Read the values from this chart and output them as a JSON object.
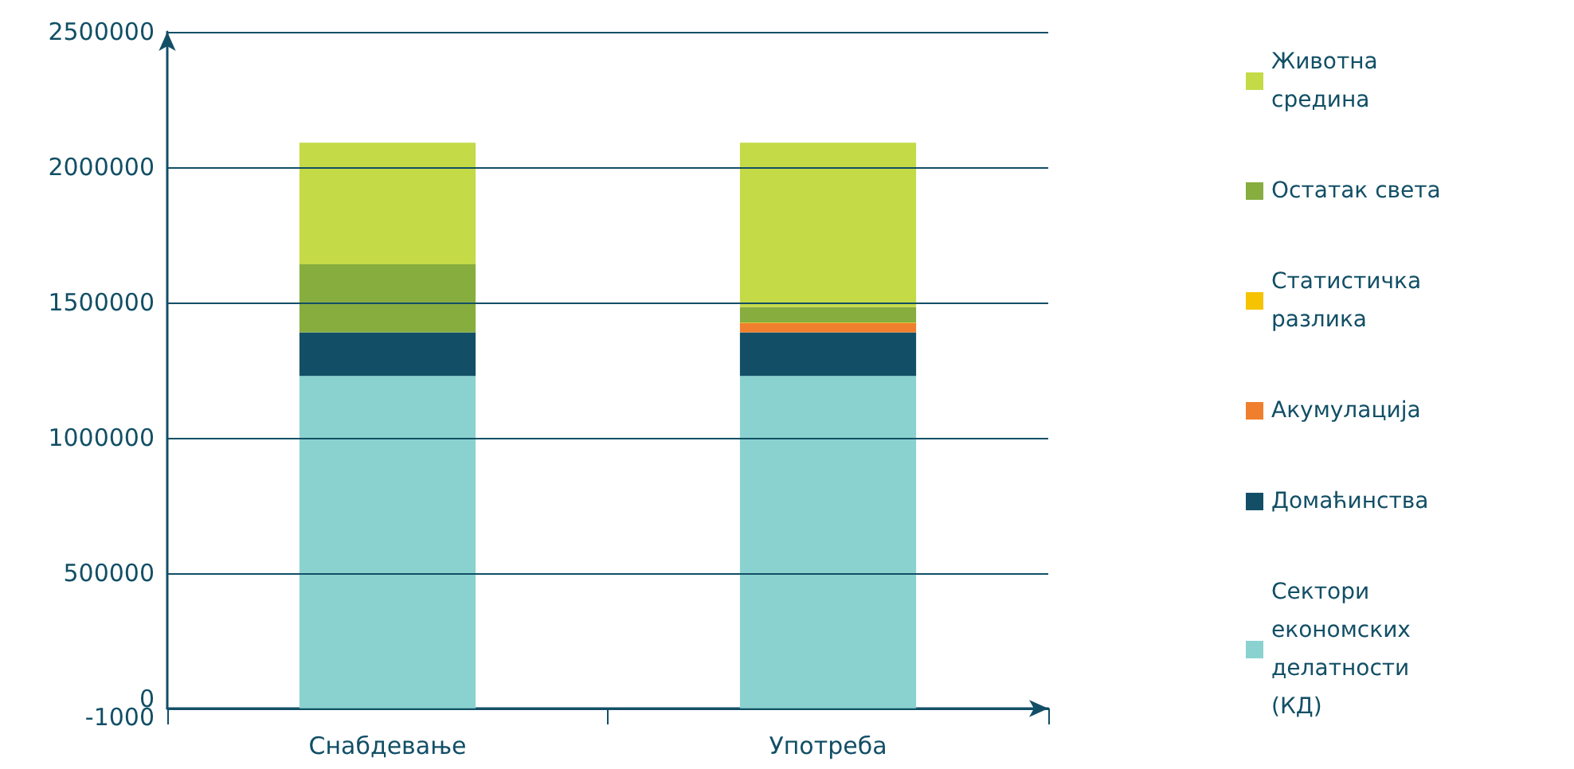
{
  "chart_data": {
    "type": "bar",
    "stacked": true,
    "categories": [
      "Снабдевање",
      "Употреба"
    ],
    "series": [
      {
        "name": "Сектори економских делатности (КД)",
        "color": "#8ad2cf",
        "values": [
          1228000,
          1228000
        ]
      },
      {
        "name": "Домаћинства",
        "color": "#124f66",
        "values": [
          161000,
          161000
        ]
      },
      {
        "name": "Акумулација",
        "color": "#f07f2d",
        "values": [
          0,
          34000
        ]
      },
      {
        "name": "Статистичка разлика",
        "color": "#f5c300",
        "values": [
          0,
          2000
        ]
      },
      {
        "name": "Остатак света",
        "color": "#87ad3f",
        "values": [
          252000,
          58000
        ]
      },
      {
        "name": "Животна средина",
        "color": "#c4da46",
        "values": [
          449000,
          607000
        ]
      }
    ],
    "ylim": [
      -1000,
      2500000
    ],
    "yticks": [
      -1000,
      0,
      500000,
      1000000,
      1500000,
      2000000,
      2500000
    ],
    "grid": "y",
    "legend": "right"
  }
}
